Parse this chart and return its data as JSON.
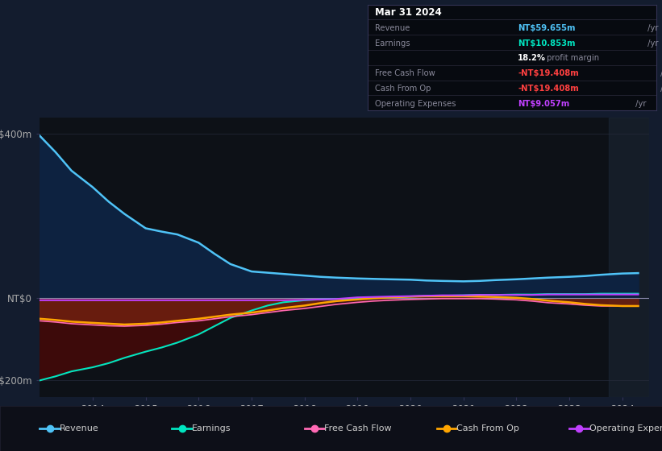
{
  "background_color": "#131c2e",
  "plot_bg_color": "#131c2e",
  "chart_bg": "#0d1117",
  "title_box": {
    "date": "Mar 31 2024",
    "rows": [
      {
        "label": "Revenue",
        "value": "NT$59.655m",
        "suffix": " /yr",
        "value_color": "#4fc3f7"
      },
      {
        "label": "Earnings",
        "value": "NT$10.853m",
        "suffix": " /yr",
        "value_color": "#00e5c0"
      },
      {
        "label": "",
        "value": "18.2%",
        "suffix": " profit margin",
        "value_color": "#ffffff"
      },
      {
        "label": "Free Cash Flow",
        "value": "-NT$19.408m",
        "suffix": " /yr",
        "value_color": "#ff4040"
      },
      {
        "label": "Cash From Op",
        "value": "-NT$19.408m",
        "suffix": " /yr",
        "value_color": "#ff4040"
      },
      {
        "label": "Operating Expenses",
        "value": "NT$9.057m",
        "suffix": " /yr",
        "value_color": "#c040ff"
      }
    ],
    "box_bg": "#070a10",
    "sep_color": "#2a2a3a",
    "label_color": "#888899",
    "title_color": "#ffffff"
  },
  "xticklabels": [
    "2014",
    "2015",
    "2016",
    "2017",
    "2018",
    "2019",
    "2020",
    "2021",
    "2022",
    "2023",
    "2024"
  ],
  "xtick_positions": [
    2014,
    2015,
    2016,
    2017,
    2018,
    2019,
    2020,
    2021,
    2022,
    2023,
    2024
  ],
  "legend": [
    {
      "label": "Revenue",
      "color": "#4fc3f7"
    },
    {
      "label": "Earnings",
      "color": "#00e5c0"
    },
    {
      "label": "Free Cash Flow",
      "color": "#ff69b4"
    },
    {
      "label": "Cash From Op",
      "color": "#ffa500"
    },
    {
      "label": "Operating Expenses",
      "color": "#c040ff"
    }
  ],
  "years": [
    2013.0,
    2013.3,
    2013.6,
    2014.0,
    2014.3,
    2014.6,
    2015.0,
    2015.3,
    2015.6,
    2016.0,
    2016.3,
    2016.6,
    2017.0,
    2017.3,
    2017.6,
    2018.0,
    2018.3,
    2018.6,
    2019.0,
    2019.3,
    2019.6,
    2020.0,
    2020.3,
    2020.6,
    2021.0,
    2021.3,
    2021.6,
    2022.0,
    2022.3,
    2022.6,
    2023.0,
    2023.3,
    2023.6,
    2024.0,
    2024.3
  ],
  "revenue": [
    395,
    355,
    310,
    270,
    235,
    205,
    170,
    162,
    155,
    135,
    108,
    83,
    65,
    62,
    59,
    55,
    52,
    50,
    48,
    47,
    46,
    45,
    43,
    42,
    41,
    42,
    44,
    46,
    48,
    50,
    52,
    54,
    57,
    60,
    61
  ],
  "earnings": [
    -200,
    -190,
    -178,
    -168,
    -158,
    -145,
    -130,
    -120,
    -108,
    -88,
    -68,
    -48,
    -30,
    -18,
    -10,
    -5,
    -3,
    -2,
    -1,
    0,
    2,
    4,
    5,
    6,
    7,
    8,
    8,
    9,
    9,
    10,
    10,
    10,
    11,
    11,
    11
  ],
  "free_cash_flow": [
    -55,
    -58,
    -62,
    -65,
    -67,
    -68,
    -66,
    -63,
    -59,
    -55,
    -50,
    -45,
    -40,
    -35,
    -30,
    -25,
    -20,
    -15,
    -10,
    -7,
    -5,
    -3,
    -2,
    -1,
    -1,
    -1,
    -2,
    -4,
    -7,
    -11,
    -14,
    -17,
    -19,
    -19,
    -19
  ],
  "cash_from_op": [
    -50,
    -53,
    -57,
    -60,
    -62,
    -64,
    -62,
    -59,
    -55,
    -50,
    -45,
    -40,
    -35,
    -30,
    -24,
    -18,
    -12,
    -7,
    -3,
    0,
    2,
    4,
    5,
    5,
    5,
    4,
    3,
    1,
    -2,
    -6,
    -10,
    -14,
    -17,
    -19,
    -19
  ],
  "operating_expenses": [
    -5,
    -5,
    -5,
    -5,
    -5,
    -5,
    -5,
    -5,
    -5,
    -5,
    -5,
    -5,
    -5,
    -5,
    -5,
    -4,
    -3,
    -2,
    2,
    3,
    4,
    5,
    6,
    7,
    7,
    8,
    8,
    8,
    8,
    9,
    9,
    9,
    9,
    9,
    9
  ],
  "ylim": [
    -240,
    440
  ],
  "xlim": [
    2013.0,
    2024.5
  ],
  "grid_color": "#1e2535",
  "grid_color2": "#252a3a",
  "revenue_fill": "#0d2240",
  "neg_fill": "#3d0a0a",
  "right_shade_x": 2023.75,
  "right_shade_color": "#1e2a3a"
}
